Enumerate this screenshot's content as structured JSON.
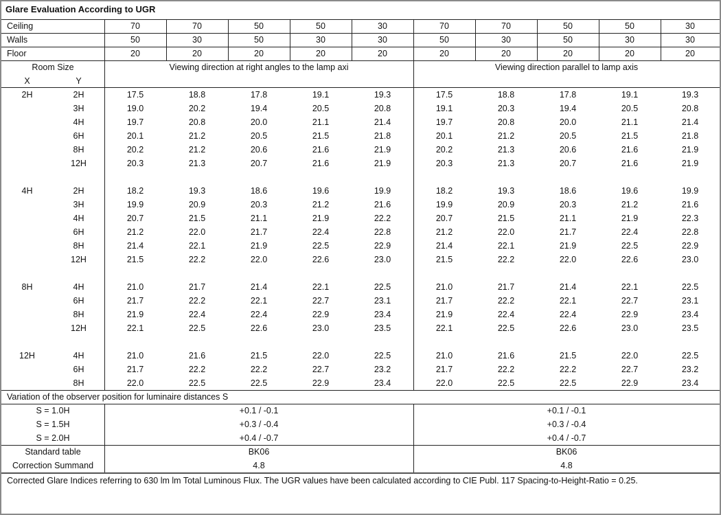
{
  "title": "Glare Evaluation According to UGR",
  "reflectances": [
    {
      "label": "Ceiling",
      "values": [
        "70",
        "70",
        "50",
        "50",
        "30",
        "70",
        "70",
        "50",
        "50",
        "30"
      ]
    },
    {
      "label": "Walls",
      "values": [
        "50",
        "30",
        "50",
        "30",
        "30",
        "50",
        "30",
        "50",
        "30",
        "30"
      ]
    },
    {
      "label": "Floor",
      "values": [
        "20",
        "20",
        "20",
        "20",
        "20",
        "20",
        "20",
        "20",
        "20",
        "20"
      ]
    }
  ],
  "header": {
    "room_size": "Room Size",
    "x": "X",
    "y": "Y",
    "dir_right_angles": "Viewing direction at right angles to the lamp axi",
    "dir_parallel": "Viewing direction parallel to lamp axis"
  },
  "groups": [
    {
      "x": "2H",
      "rows": [
        {
          "y": "2H",
          "v": [
            "17.5",
            "18.8",
            "17.8",
            "19.1",
            "19.3",
            "17.5",
            "18.8",
            "17.8",
            "19.1",
            "19.3"
          ]
        },
        {
          "y": "3H",
          "v": [
            "19.0",
            "20.2",
            "19.4",
            "20.5",
            "20.8",
            "19.1",
            "20.3",
            "19.4",
            "20.5",
            "20.8"
          ]
        },
        {
          "y": "4H",
          "v": [
            "19.7",
            "20.8",
            "20.0",
            "21.1",
            "21.4",
            "19.7",
            "20.8",
            "20.0",
            "21.1",
            "21.4"
          ]
        },
        {
          "y": "6H",
          "v": [
            "20.1",
            "21.2",
            "20.5",
            "21.5",
            "21.8",
            "20.1",
            "21.2",
            "20.5",
            "21.5",
            "21.8"
          ]
        },
        {
          "y": "8H",
          "v": [
            "20.2",
            "21.2",
            "20.6",
            "21.6",
            "21.9",
            "20.2",
            "21.3",
            "20.6",
            "21.6",
            "21.9"
          ]
        },
        {
          "y": "12H",
          "v": [
            "20.3",
            "21.3",
            "20.7",
            "21.6",
            "21.9",
            "20.3",
            "21.3",
            "20.7",
            "21.6",
            "21.9"
          ]
        }
      ]
    },
    {
      "x": "4H",
      "rows": [
        {
          "y": "2H",
          "v": [
            "18.2",
            "19.3",
            "18.6",
            "19.6",
            "19.9",
            "18.2",
            "19.3",
            "18.6",
            "19.6",
            "19.9"
          ]
        },
        {
          "y": "3H",
          "v": [
            "19.9",
            "20.9",
            "20.3",
            "21.2",
            "21.6",
            "19.9",
            "20.9",
            "20.3",
            "21.2",
            "21.6"
          ]
        },
        {
          "y": "4H",
          "v": [
            "20.7",
            "21.5",
            "21.1",
            "21.9",
            "22.2",
            "20.7",
            "21.5",
            "21.1",
            "21.9",
            "22.3"
          ]
        },
        {
          "y": "6H",
          "v": [
            "21.2",
            "22.0",
            "21.7",
            "22.4",
            "22.8",
            "21.2",
            "22.0",
            "21.7",
            "22.4",
            "22.8"
          ]
        },
        {
          "y": "8H",
          "v": [
            "21.4",
            "22.1",
            "21.9",
            "22.5",
            "22.9",
            "21.4",
            "22.1",
            "21.9",
            "22.5",
            "22.9"
          ]
        },
        {
          "y": "12H",
          "v": [
            "21.5",
            "22.2",
            "22.0",
            "22.6",
            "23.0",
            "21.5",
            "22.2",
            "22.0",
            "22.6",
            "23.0"
          ]
        }
      ]
    },
    {
      "x": "8H",
      "rows": [
        {
          "y": "4H",
          "v": [
            "21.0",
            "21.7",
            "21.4",
            "22.1",
            "22.5",
            "21.0",
            "21.7",
            "21.4",
            "22.1",
            "22.5"
          ]
        },
        {
          "y": "6H",
          "v": [
            "21.7",
            "22.2",
            "22.1",
            "22.7",
            "23.1",
            "21.7",
            "22.2",
            "22.1",
            "22.7",
            "23.1"
          ]
        },
        {
          "y": "8H",
          "v": [
            "21.9",
            "22.4",
            "22.4",
            "22.9",
            "23.4",
            "21.9",
            "22.4",
            "22.4",
            "22.9",
            "23.4"
          ]
        },
        {
          "y": "12H",
          "v": [
            "22.1",
            "22.5",
            "22.6",
            "23.0",
            "23.5",
            "22.1",
            "22.5",
            "22.6",
            "23.0",
            "23.5"
          ]
        }
      ]
    },
    {
      "x": "12H",
      "rows": [
        {
          "y": "4H",
          "v": [
            "21.0",
            "21.6",
            "21.5",
            "22.0",
            "22.5",
            "21.0",
            "21.6",
            "21.5",
            "22.0",
            "22.5"
          ]
        },
        {
          "y": "6H",
          "v": [
            "21.7",
            "22.2",
            "22.2",
            "22.7",
            "23.2",
            "21.7",
            "22.2",
            "22.2",
            "22.7",
            "23.2"
          ]
        },
        {
          "y": "8H",
          "v": [
            "22.0",
            "22.5",
            "22.5",
            "22.9",
            "23.4",
            "22.0",
            "22.5",
            "22.5",
            "22.9",
            "23.4"
          ]
        }
      ]
    }
  ],
  "variation": {
    "title": "Variation of the observer position for luminaire distances S",
    "rows": [
      {
        "label": "S = 1.0H",
        "left": "+0.1 / -0.1",
        "right": "+0.1 / -0.1"
      },
      {
        "label": "S = 1.5H",
        "left": "+0.3 / -0.4",
        "right": "+0.3 / -0.4"
      },
      {
        "label": "S = 2.0H",
        "left": "+0.4 / -0.7",
        "right": "+0.4 / -0.7"
      }
    ]
  },
  "standard": [
    {
      "label": "Standard table",
      "left": "BK06",
      "right": "BK06"
    },
    {
      "label": "Correction Summand",
      "left": "4.8",
      "right": "4.8"
    }
  ],
  "footer": "Corrected Glare Indices referring to 630 lm lm Total Luminous Flux. The UGR values have been calculated according to CIE Publ. 117    Spacing-to-Height-Ratio = 0.25."
}
